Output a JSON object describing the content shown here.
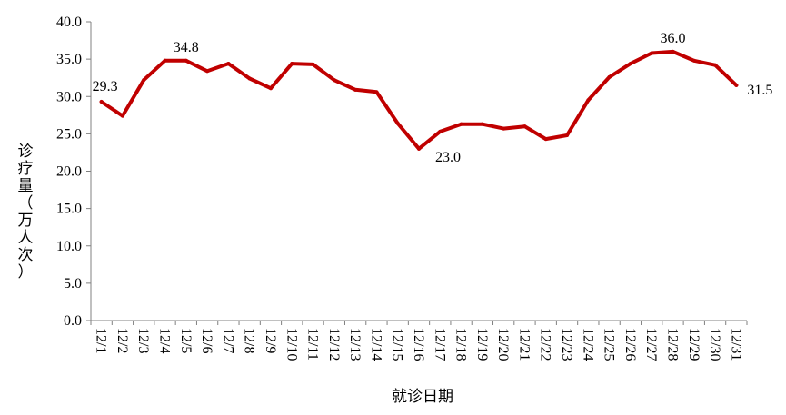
{
  "chart_data": {
    "type": "line",
    "xlabel": "就诊日期",
    "ylabel": "诊疗量（万人次）",
    "ylim": [
      0,
      40
    ],
    "yticks": [
      "0.0",
      "5.0",
      "10.0",
      "15.0",
      "20.0",
      "25.0",
      "30.0",
      "35.0",
      "40.0"
    ],
    "grid": false,
    "categories": [
      "12/1",
      "12/2",
      "12/3",
      "12/4",
      "12/5",
      "12/6",
      "12/7",
      "12/8",
      "12/9",
      "12/10",
      "12/11",
      "12/12",
      "12/13",
      "12/14",
      "12/15",
      "12/16",
      "12/17",
      "12/18",
      "12/19",
      "12/20",
      "12/21",
      "12/22",
      "12/23",
      "12/24",
      "12/25",
      "12/26",
      "12/27",
      "12/28",
      "12/29",
      "12/30",
      "12/31"
    ],
    "series": [
      {
        "color": "#C00000",
        "values": [
          29.3,
          27.4,
          32.2,
          34.8,
          34.8,
          33.4,
          34.4,
          32.4,
          31.1,
          34.4,
          34.3,
          32.2,
          30.9,
          30.6,
          26.4,
          23.0,
          25.3,
          26.3,
          26.3,
          25.7,
          26.0,
          24.3,
          24.8,
          29.5,
          32.6,
          34.4,
          35.8,
          36.0,
          34.8,
          34.2,
          31.5
        ]
      }
    ],
    "annotations": [
      {
        "category": "12/1",
        "text": "29.3"
      },
      {
        "category": "12/5",
        "text": "34.8"
      },
      {
        "category": "12/16",
        "text": "23.0"
      },
      {
        "category": "12/28",
        "text": "36.0"
      },
      {
        "category": "12/31",
        "text": "31.5"
      }
    ]
  }
}
